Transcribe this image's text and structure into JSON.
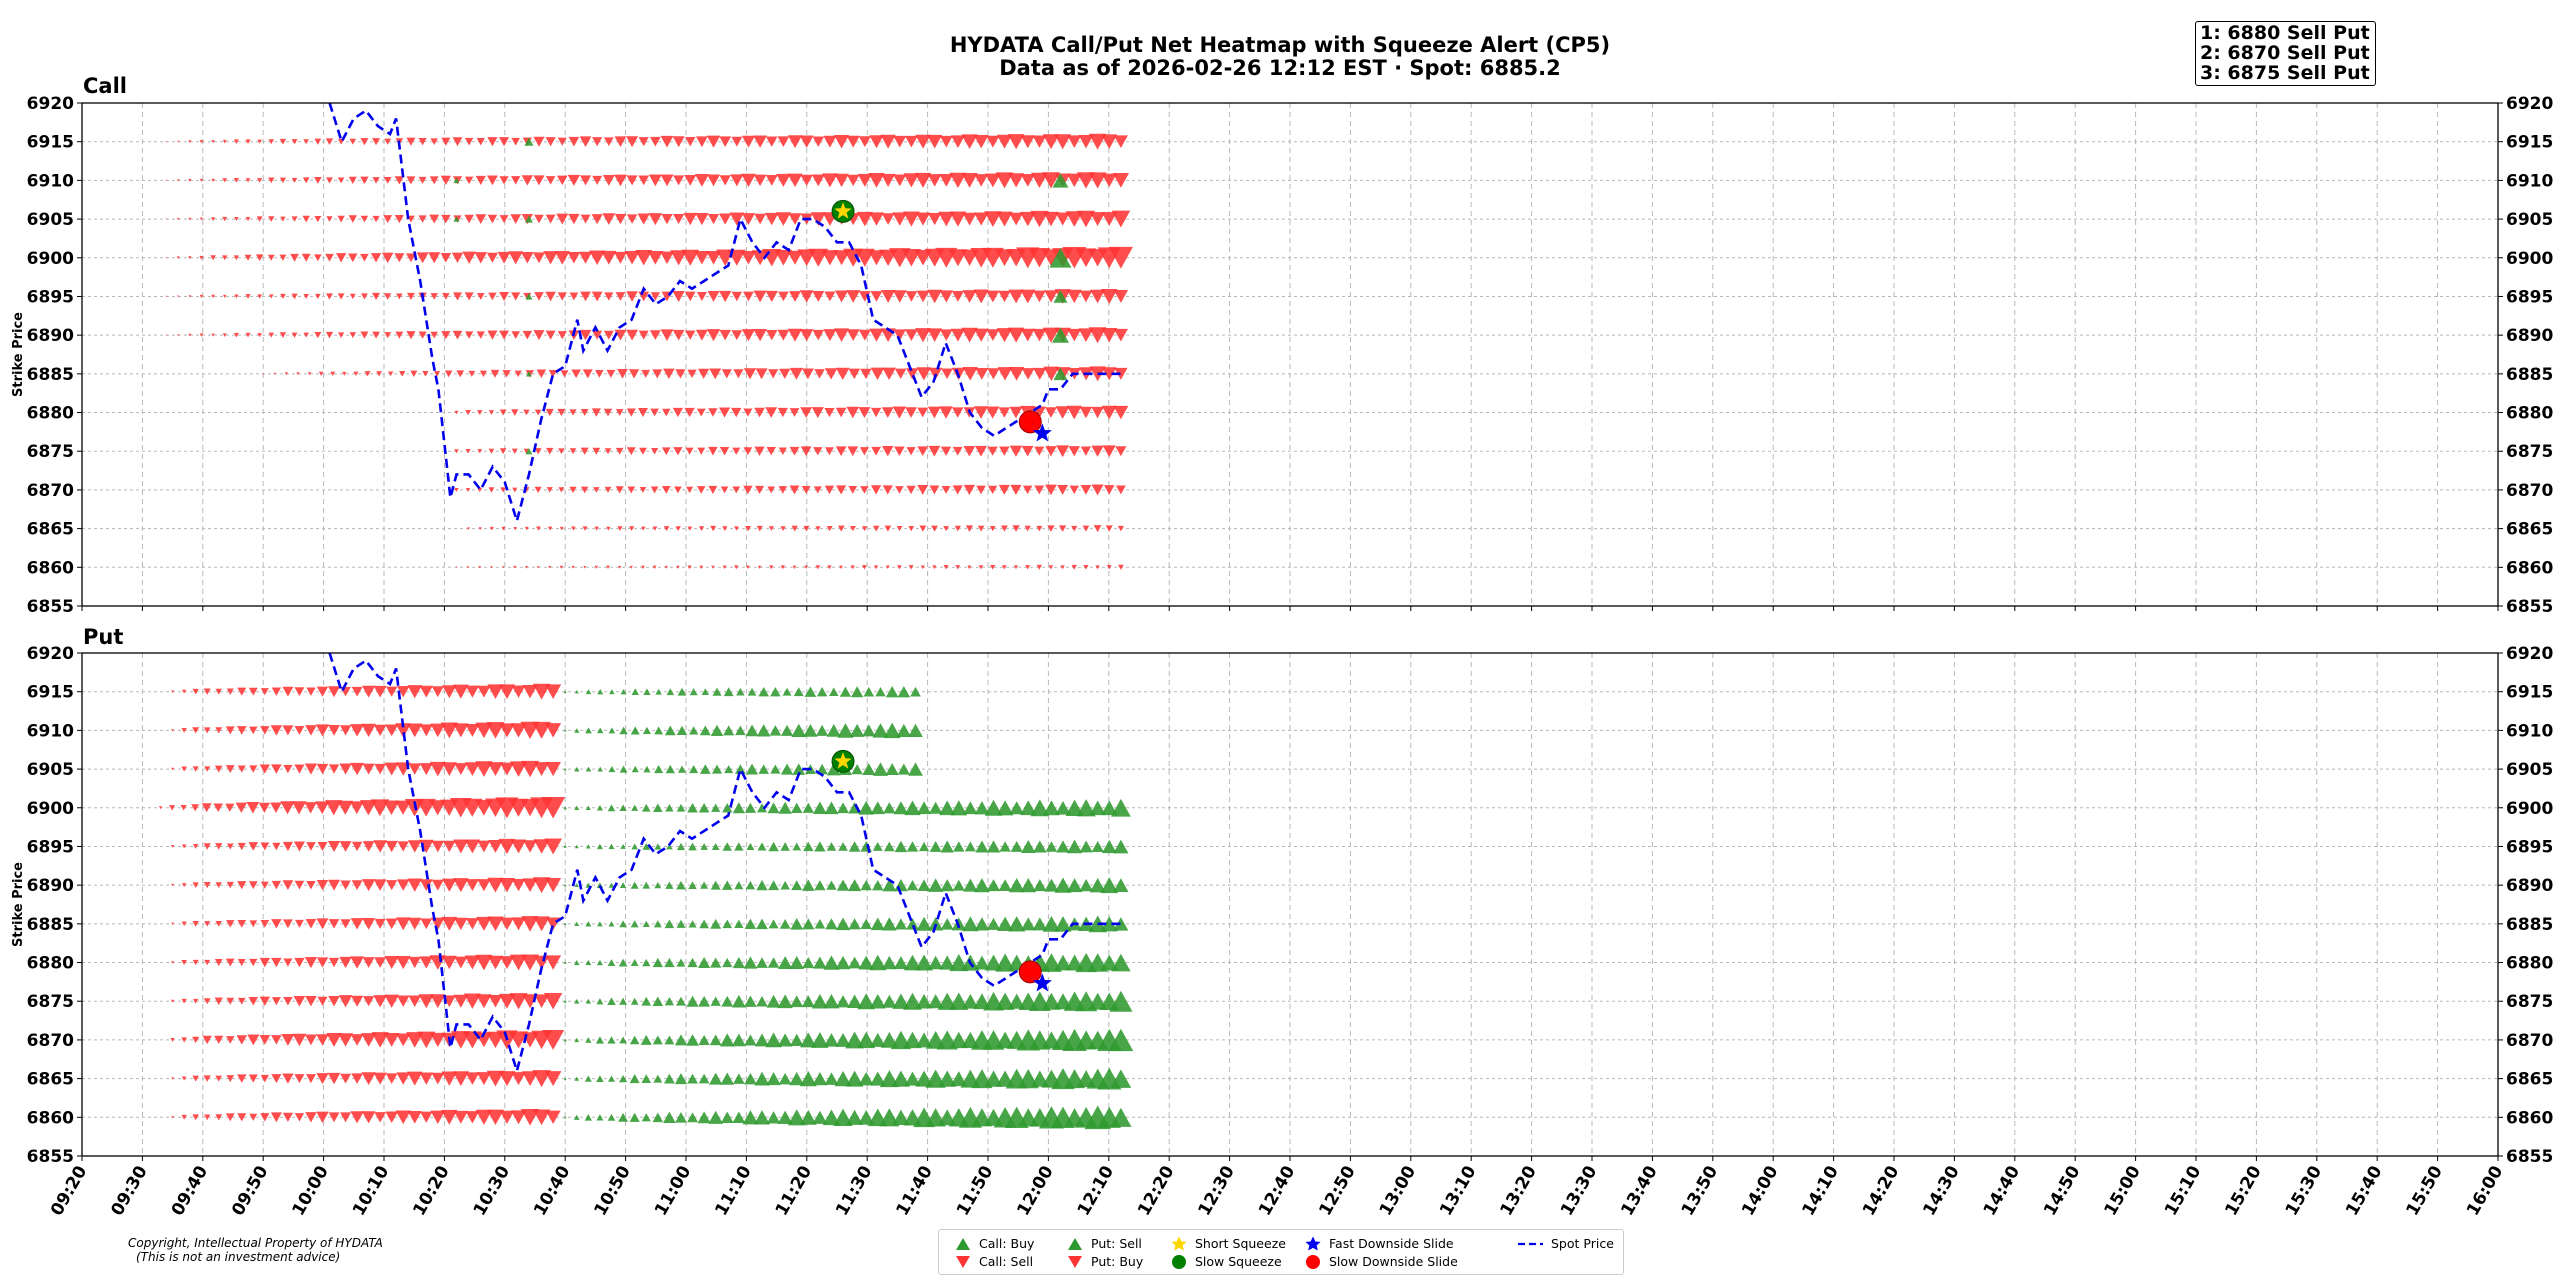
{
  "title": "HYDATA Call/Put Net Heatmap with Squeeze Alert (CP5)",
  "subtitle": "Data as of 2026-02-26 12:12 EST · Spot: 6885.2",
  "ranking": [
    "1: 6880 Sell Put",
    "2: 6870 Sell Put",
    "3: 6875 Sell Put"
  ],
  "copyright": [
    "Copyright, Intellectual Property of HYDATA",
    "(This is not an investment advice)"
  ],
  "colors": {
    "green": "#2f9a2f",
    "red": "#ff3333",
    "blue": "#0000ee",
    "yellow": "#ffd700"
  },
  "legend": [
    {
      "label": "Call: Buy",
      "marker": "triangle-up",
      "color": "#2f9a2f"
    },
    {
      "label": "Call: Sell",
      "marker": "triangle-down",
      "color": "#ff3333"
    },
    {
      "label": "Put: Sell",
      "marker": "triangle-up",
      "color": "#2f9a2f"
    },
    {
      "label": "Put: Buy",
      "marker": "triangle-down",
      "color": "#ff3333"
    },
    {
      "label": "Short Squeeze",
      "marker": "star",
      "color": "#ffd700"
    },
    {
      "label": "Slow Squeeze",
      "marker": "circle",
      "color": "#008000"
    },
    {
      "label": "Fast Downside Slide",
      "marker": "star",
      "color": "#0000ee"
    },
    {
      "label": "Slow Downside Slide",
      "marker": "circle",
      "color": "#ff0000"
    },
    {
      "label": "Spot Price",
      "marker": "dashed-line",
      "color": "#0000ee"
    }
  ],
  "chart_data": {
    "type": "scatter",
    "ylabel": "Strike Price",
    "ylim": [
      6855,
      6920
    ],
    "yticks": [
      6855,
      6860,
      6865,
      6870,
      6875,
      6880,
      6885,
      6890,
      6895,
      6900,
      6905,
      6910,
      6915,
      6920
    ],
    "xlim": [
      "09:20",
      "16:00"
    ],
    "xticks": [
      "09:20",
      "09:30",
      "09:40",
      "09:50",
      "10:00",
      "10:10",
      "10:20",
      "10:30",
      "10:40",
      "10:50",
      "11:00",
      "11:10",
      "11:20",
      "11:30",
      "11:40",
      "11:50",
      "12:00",
      "12:10",
      "12:20",
      "12:30",
      "12:40",
      "12:50",
      "13:00",
      "13:10",
      "13:20",
      "13:30",
      "13:40",
      "13:50",
      "14:00",
      "14:10",
      "14:20",
      "14:30",
      "14:40",
      "14:50",
      "15:00",
      "15:10",
      "15:20",
      "15:30",
      "15:40",
      "15:50",
      "16:00"
    ],
    "grid": true,
    "strikes": [
      6860,
      6865,
      6870,
      6875,
      6880,
      6885,
      6890,
      6895,
      6900,
      6905,
      6910,
      6915
    ],
    "spot_price": {
      "x": [
        "10:01",
        "10:03",
        "10:05",
        "10:07",
        "10:09",
        "10:11",
        "10:12",
        "10:14",
        "10:16",
        "10:18",
        "10:19",
        "10:21",
        "10:22",
        "10:24",
        "10:26",
        "10:28",
        "10:30",
        "10:32",
        "10:34",
        "10:36",
        "10:38",
        "10:40",
        "10:42",
        "10:43",
        "10:45",
        "10:47",
        "10:49",
        "10:51",
        "10:53",
        "10:55",
        "10:57",
        "10:59",
        "11:01",
        "11:03",
        "11:05",
        "11:07",
        "11:09",
        "11:11",
        "11:13",
        "11:15",
        "11:17",
        "11:19",
        "11:21",
        "11:23",
        "11:25",
        "11:27",
        "11:29",
        "11:31",
        "11:33",
        "11:35",
        "11:37",
        "11:39",
        "11:41",
        "11:43",
        "11:45",
        "11:47",
        "11:49",
        "11:51",
        "11:53",
        "11:55",
        "11:57",
        "11:59",
        "12:00",
        "12:02",
        "12:04",
        "12:06",
        "12:08",
        "12:10",
        "12:12"
      ],
      "y": [
        6920,
        6915,
        6918,
        6919,
        6917,
        6916,
        6918,
        6905,
        6897,
        6887,
        6883,
        6869,
        6872,
        6872,
        6870,
        6873,
        6871,
        6866,
        6872,
        6879,
        6885,
        6886,
        6892,
        6888,
        6891,
        6888,
        6891,
        6892,
        6896,
        6894,
        6895,
        6897,
        6896,
        6897,
        6898,
        6899,
        6905,
        6902,
        6900,
        6902,
        6901,
        6905,
        6905,
        6904,
        6902,
        6902,
        6899,
        6892,
        6891,
        6890,
        6886,
        6882,
        6884,
        6889,
        6885,
        6880,
        6878,
        6877,
        6878,
        6879,
        6880,
        6881,
        6883,
        6883,
        6885,
        6885,
        6885,
        6885,
        6885
      ]
    },
    "panels": [
      {
        "name": "Call",
        "series": [
          {
            "name": "Call: Sell",
            "marker": "triangle-down",
            "rows": [
              {
                "strike": 6915,
                "start": "09:34",
                "end": "12:12",
                "size": [
                  1,
                  16
                ]
              },
              {
                "strike": 6910,
                "start": "09:34",
                "end": "12:12",
                "size": [
                  1,
                  17
                ]
              },
              {
                "strike": 6905,
                "start": "09:34",
                "end": "12:12",
                "size": [
                  1,
                  17
                ]
              },
              {
                "strike": 6900,
                "start": "09:34",
                "end": "12:12",
                "size": [
                  1,
                  22
                ]
              },
              {
                "strike": 6895,
                "start": "09:34",
                "end": "12:12",
                "size": [
                  1,
                  15
                ]
              },
              {
                "strike": 6890,
                "start": "09:34",
                "end": "12:12",
                "size": [
                  1,
                  16
                ]
              },
              {
                "strike": 6885,
                "start": "09:50",
                "end": "12:12",
                "size": [
                  1,
                  15
                ]
              },
              {
                "strike": 6880,
                "start": "10:22",
                "end": "12:12",
                "size": [
                  4,
                  14
                ]
              },
              {
                "strike": 6875,
                "start": "10:22",
                "end": "12:12",
                "size": [
                  4,
                  12
                ]
              },
              {
                "strike": 6870,
                "start": "10:22",
                "end": "12:12",
                "size": [
                  4,
                  11
                ]
              },
              {
                "strike": 6865,
                "start": "10:24",
                "end": "12:12",
                "size": [
                  3,
                  7
                ]
              },
              {
                "strike": 6860,
                "start": "10:22",
                "end": "12:12",
                "size": [
                  2,
                  5
                ]
              }
            ]
          },
          {
            "name": "Call: Buy",
            "marker": "triangle-up",
            "points": [
              {
                "time": "10:34",
                "strike": 6915,
                "size": 9
              },
              {
                "time": "10:22",
                "strike": 6910,
                "size": 6
              },
              {
                "time": "12:02",
                "strike": 6910,
                "size": 16
              },
              {
                "time": "10:22",
                "strike": 6905,
                "size": 6
              },
              {
                "time": "10:34",
                "strike": 6905,
                "size": 8
              },
              {
                "time": "12:02",
                "strike": 6900,
                "size": 22
              },
              {
                "time": "10:34",
                "strike": 6895,
                "size": 7
              },
              {
                "time": "12:02",
                "strike": 6895,
                "size": 14
              },
              {
                "time": "12:02",
                "strike": 6890,
                "size": 17
              },
              {
                "time": "10:34",
                "strike": 6885,
                "size": 6
              },
              {
                "time": "12:02",
                "strike": 6885,
                "size": 14
              },
              {
                "time": "10:34",
                "strike": 6875,
                "size": 7
              }
            ]
          }
        ],
        "alerts": [
          {
            "type": "Short Squeeze",
            "time": "11:26",
            "strike": 6906
          },
          {
            "type": "Slow Squeeze",
            "time": "11:26",
            "strike": 6906
          },
          {
            "type": "Slow Downside Slide",
            "time": "11:57",
            "strike": 6878.8
          },
          {
            "type": "Fast Downside Slide",
            "time": "11:59",
            "strike": 6877.3
          }
        ]
      },
      {
        "name": "Put",
        "series": [
          {
            "name": "Put: Buy",
            "marker": "triangle-down",
            "rows": [
              {
                "strike": 6915,
                "start": "09:35",
                "end": "10:38",
                "size": [
                  3,
                  16
                ]
              },
              {
                "strike": 6910,
                "start": "09:35",
                "end": "10:38",
                "size": [
                  3,
                  18
                ]
              },
              {
                "strike": 6905,
                "start": "09:35",
                "end": "10:38",
                "size": [
                  3,
                  17
                ]
              },
              {
                "strike": 6900,
                "start": "09:33",
                "end": "10:38",
                "size": [
                  3,
                  22
                ]
              },
              {
                "strike": 6895,
                "start": "09:35",
                "end": "10:38",
                "size": [
                  3,
                  16
                ]
              },
              {
                "strike": 6890,
                "start": "09:35",
                "end": "10:38",
                "size": [
                  3,
                  16
                ]
              },
              {
                "strike": 6885,
                "start": "09:35",
                "end": "10:38",
                "size": [
                  3,
                  16
                ]
              },
              {
                "strike": 6880,
                "start": "09:35",
                "end": "10:38",
                "size": [
                  3,
                  17
                ]
              },
              {
                "strike": 6875,
                "start": "09:35",
                "end": "10:38",
                "size": [
                  3,
                  17
                ]
              },
              {
                "strike": 6870,
                "start": "09:35",
                "end": "10:38",
                "size": [
                  4,
                  20
                ]
              },
              {
                "strike": 6865,
                "start": "09:35",
                "end": "10:38",
                "size": [
                  3,
                  17
                ]
              },
              {
                "strike": 6860,
                "start": "09:35",
                "end": "10:38",
                "size": [
                  3,
                  17
                ]
              }
            ]
          },
          {
            "name": "Put: Sell",
            "marker": "triangle-up",
            "rows": [
              {
                "strike": 6915,
                "start": "10:40",
                "end": "11:38",
                "size": [
                  3,
                  12
                ]
              },
              {
                "strike": 6910,
                "start": "10:40",
                "end": "11:38",
                "size": [
                  3,
                  16
                ]
              },
              {
                "strike": 6905,
                "start": "10:40",
                "end": "11:38",
                "size": [
                  3,
                  14
                ]
              },
              {
                "strike": 6900,
                "start": "10:40",
                "end": "12:12",
                "size": [
                  3,
                  18
                ]
              },
              {
                "strike": 6895,
                "start": "10:40",
                "end": "12:12",
                "size": [
                  3,
                  14
                ]
              },
              {
                "strike": 6890,
                "start": "10:40",
                "end": "12:12",
                "size": [
                  3,
                  16
                ]
              },
              {
                "strike": 6885,
                "start": "10:40",
                "end": "12:12",
                "size": [
                  3,
                  17
                ]
              },
              {
                "strike": 6880,
                "start": "10:40",
                "end": "12:12",
                "size": [
                  3,
                  20
                ]
              },
              {
                "strike": 6875,
                "start": "10:40",
                "end": "12:12",
                "size": [
                  3,
                  21
                ]
              },
              {
                "strike": 6870,
                "start": "10:40",
                "end": "12:12",
                "size": [
                  3,
                  23
                ]
              },
              {
                "strike": 6865,
                "start": "10:40",
                "end": "12:12",
                "size": [
                  3,
                  22
                ]
              },
              {
                "strike": 6860,
                "start": "10:40",
                "end": "12:12",
                "size": [
                  3,
                  24
                ]
              }
            ]
          }
        ],
        "alerts": [
          {
            "type": "Short Squeeze",
            "time": "11:26",
            "strike": 6906
          },
          {
            "type": "Slow Squeeze",
            "time": "11:26",
            "strike": 6906
          },
          {
            "type": "Slow Downside Slide",
            "time": "11:57",
            "strike": 6878.8
          },
          {
            "type": "Fast Downside Slide",
            "time": "11:59",
            "strike": 6877.3
          }
        ]
      }
    ]
  }
}
